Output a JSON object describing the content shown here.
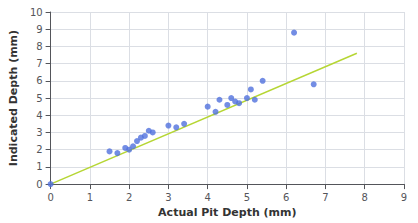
{
  "chart_data": {
    "type": "scatter",
    "xlabel": "Actual Pit Depth (mm)",
    "ylabel": "Indicated Depth (mm)",
    "series": [
      {
        "type": "scatter",
        "x": [
          0.0,
          1.5,
          1.7,
          1.9,
          2.0,
          2.1,
          2.2,
          2.3,
          2.4,
          2.5,
          2.6,
          3.0,
          3.2,
          3.4,
          4.0,
          4.2,
          4.3,
          4.5,
          4.6,
          4.7,
          4.8,
          5.0,
          5.1,
          5.2,
          5.4,
          6.2,
          6.7
        ],
        "values": [
          0.0,
          1.9,
          1.8,
          2.1,
          2.0,
          2.2,
          2.5,
          2.7,
          2.8,
          3.1,
          3.0,
          3.4,
          3.3,
          3.5,
          4.5,
          4.2,
          4.9,
          4.6,
          5.0,
          4.8,
          4.7,
          5.0,
          5.5,
          4.9,
          6.0,
          8.8,
          5.8
        ]
      },
      {
        "type": "line",
        "x": [
          0.0,
          7.8
        ],
        "values": [
          0.0,
          7.6
        ]
      }
    ],
    "xlim": [
      0,
      9
    ],
    "xticks": [
      0,
      1,
      2,
      3,
      4,
      5,
      6,
      7,
      8,
      9
    ],
    "ylim": [
      0,
      10
    ],
    "yticks": [
      0,
      1,
      2,
      3,
      4,
      5,
      6,
      7,
      8,
      9,
      10
    ],
    "grid": true
  }
}
